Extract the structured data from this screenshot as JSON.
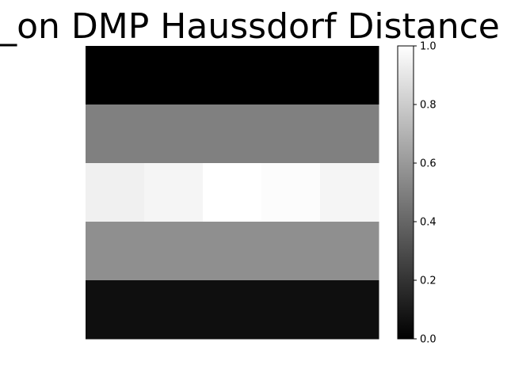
{
  "chart_data": {
    "type": "heatmap",
    "title": "_on DMP Haussdorf Distance",
    "xlabel": "",
    "ylabel": "",
    "rows": 5,
    "cols": 5,
    "values": [
      [
        0.0,
        0.0,
        0.0,
        0.0,
        0.0
      ],
      [
        0.5,
        0.5,
        0.5,
        0.5,
        0.5
      ],
      [
        0.94,
        0.96,
        1.0,
        0.99,
        0.96
      ],
      [
        0.56,
        0.56,
        0.56,
        0.56,
        0.56
      ],
      [
        0.06,
        0.06,
        0.06,
        0.06,
        0.06
      ]
    ],
    "colormap": "gray",
    "vmin": 0.0,
    "vmax": 1.0,
    "colorbar": {
      "ticks": [
        0.0,
        0.2,
        0.4,
        0.6,
        0.8,
        1.0
      ],
      "tick_labels": [
        "0.0",
        "0.2",
        "0.4",
        "0.6",
        "0.8",
        "1.0"
      ]
    },
    "axes_visible": false,
    "grid": false
  }
}
